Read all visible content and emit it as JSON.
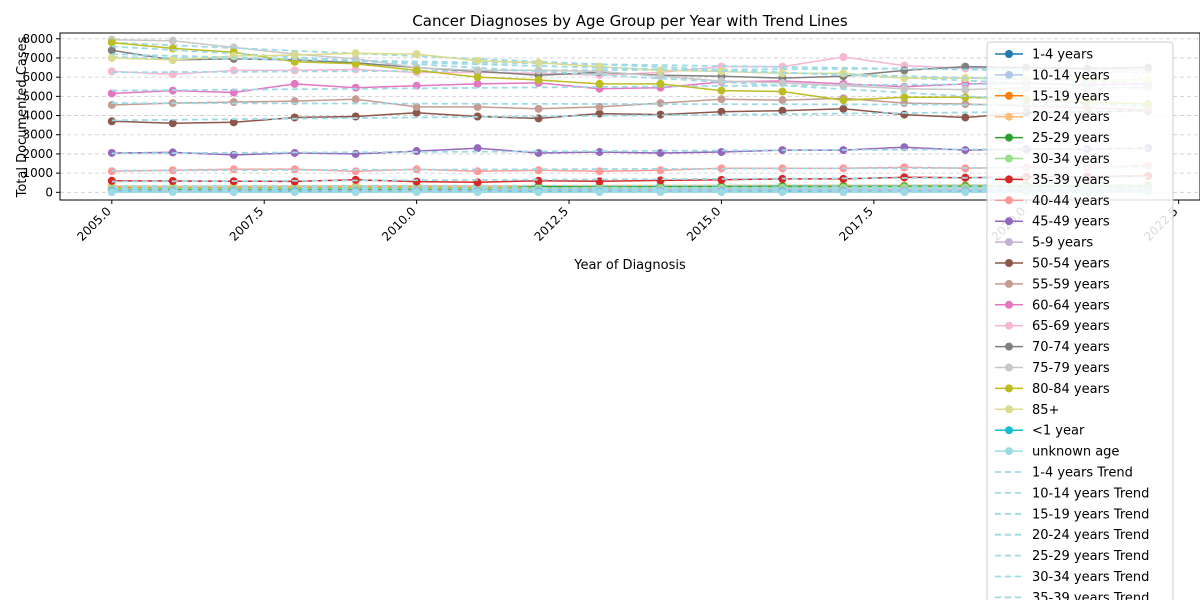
{
  "chart_data": {
    "type": "line",
    "title": "Cancer Diagnoses by Age Group per Year with Trend Lines",
    "xlabel": "Year of Diagnosis",
    "ylabel": "Total Documented Cases",
    "xlim": [
      2004.15,
      2022.85
    ],
    "ylim": [
      -400,
      8300
    ],
    "x_ticks": [
      {
        "value": 2005.0,
        "label": "2005.0"
      },
      {
        "value": 2007.5,
        "label": "2007.5"
      },
      {
        "value": 2010.0,
        "label": "2010.0"
      },
      {
        "value": 2012.5,
        "label": "2012.5"
      },
      {
        "value": 2015.0,
        "label": "2015.0"
      },
      {
        "value": 2017.5,
        "label": "2017.5"
      },
      {
        "value": 2020.0,
        "label": "2020.0"
      },
      {
        "value": 2022.5,
        "label": "2022.5"
      }
    ],
    "y_ticks": [
      {
        "value": 0,
        "label": "0"
      },
      {
        "value": 1000,
        "label": "1000"
      },
      {
        "value": 2000,
        "label": "2000"
      },
      {
        "value": 3000,
        "label": "3000"
      },
      {
        "value": 4000,
        "label": "4000"
      },
      {
        "value": 5000,
        "label": "5000"
      },
      {
        "value": 6000,
        "label": "6000"
      },
      {
        "value": 7000,
        "label": "7000"
      },
      {
        "value": 8000,
        "label": "8000"
      }
    ],
    "grid": "y-dashed",
    "legend_position": "right",
    "x": [
      2005,
      2006,
      2007,
      2008,
      2009,
      2010,
      2011,
      2012,
      2013,
      2014,
      2015,
      2016,
      2017,
      2018,
      2019,
      2020,
      2021,
      2022
    ],
    "series": [
      {
        "name": "1-4 years",
        "color": "#1f77b4",
        "values": [
          130,
          125,
          135,
          140,
          120,
          125,
          130,
          135,
          125,
          130,
          140,
          135,
          130,
          125,
          130,
          135,
          130,
          125
        ],
        "trend": [
          130,
          130
        ]
      },
      {
        "name": "10-14 years",
        "color": "#aec7e8",
        "values": [
          170,
          160,
          165,
          175,
          170,
          160,
          165,
          170,
          175,
          165,
          170,
          175,
          170,
          165,
          170,
          175,
          170,
          165
        ],
        "trend": [
          168,
          170
        ]
      },
      {
        "name": "15-19 years",
        "color": "#ff7f0e",
        "values": [
          260,
          250,
          255,
          265,
          270,
          260,
          255,
          265,
          270,
          275,
          280,
          285,
          280,
          290,
          300,
          295,
          300,
          305
        ],
        "trend": [
          255,
          295
        ]
      },
      {
        "name": "20-24 years",
        "color": "#ffbb78",
        "values": [
          330,
          320,
          325,
          330,
          335,
          340,
          330,
          345,
          350,
          355,
          360,
          365,
          370,
          365,
          375,
          380,
          370,
          380
        ],
        "trend": [
          325,
          375
        ]
      },
      {
        "name": "25-29 years",
        "color": "#2ca02c",
        "values": [
          120,
          130,
          135,
          140,
          145,
          150,
          160,
          300,
          270,
          290,
          300,
          310,
          305,
          310,
          320,
          330,
          325,
          330
        ],
        "trend": [
          120,
          340
        ]
      },
      {
        "name": "30-34 years",
        "color": "#98df8a",
        "values": [
          200,
          210,
          205,
          215,
          210,
          220,
          215,
          225,
          230,
          235,
          240,
          245,
          250,
          255,
          260,
          265,
          270,
          275
        ],
        "trend": [
          200,
          270
        ]
      },
      {
        "name": "35-39 years",
        "color": "#d62728",
        "values": [
          600,
          590,
          580,
          570,
          650,
          560,
          520,
          600,
          580,
          620,
          650,
          700,
          700,
          780,
          760,
          800,
          820,
          850
        ],
        "trend": [
          560,
          800
        ]
      },
      {
        "name": "40-44 years",
        "color": "#ff9896",
        "values": [
          1100,
          1150,
          1200,
          1200,
          1100,
          1200,
          1100,
          1150,
          1100,
          1150,
          1250,
          1250,
          1250,
          1300,
          1250,
          1300,
          1300,
          1400
        ],
        "trend": [
          1130,
          1300
        ]
      },
      {
        "name": "45-49 years",
        "color": "#9467bd",
        "values": [
          2050,
          2080,
          1950,
          2050,
          2000,
          2150,
          2300,
          2050,
          2100,
          2050,
          2100,
          2200,
          2200,
          2350,
          2200,
          2250,
          2250,
          2300
        ],
        "trend": [
          2030,
          2280
        ]
      },
      {
        "name": "5-9 years",
        "color": "#c5b0d5",
        "values": [
          100,
          95,
          105,
          100,
          95,
          100,
          105,
          100,
          95,
          100,
          105,
          100,
          95,
          100,
          105,
          100,
          95,
          100
        ],
        "trend": [
          100,
          100
        ]
      },
      {
        "name": "50-54 years",
        "color": "#8c564b",
        "values": [
          3700,
          3600,
          3650,
          3900,
          3950,
          4150,
          3950,
          3850,
          4100,
          4050,
          4200,
          4250,
          4350,
          4050,
          3900,
          4150,
          4200,
          4250
        ],
        "trend": [
          3750,
          4250
        ]
      },
      {
        "name": "55-59 years",
        "color": "#c49c94",
        "values": [
          4550,
          4650,
          4700,
          4750,
          4850,
          4450,
          4450,
          4350,
          4450,
          4650,
          4850,
          4800,
          4900,
          4650,
          4600,
          4500,
          4400,
          4300
        ],
        "trend": [
          4650,
          4550
        ]
      },
      {
        "name": "60-64 years",
        "color": "#e377c2",
        "values": [
          5150,
          5300,
          5200,
          5650,
          5450,
          5550,
          5650,
          5700,
          5400,
          5450,
          5750,
          5800,
          5650,
          5500,
          5650,
          5700,
          5600,
          5650
        ],
        "trend": [
          5300,
          5700
        ]
      },
      {
        "name": "65-69 years",
        "color": "#f7b6d2",
        "values": [
          6300,
          6150,
          6350,
          6350,
          6400,
          6250,
          6250,
          6200,
          6100,
          6250,
          6550,
          6550,
          7050,
          6600,
          6450,
          6500,
          6400,
          6350
        ],
        "trend": [
          6250,
          6500
        ]
      },
      {
        "name": "70-74 years",
        "color": "#7f7f7f",
        "values": [
          7400,
          6900,
          6950,
          6900,
          6750,
          6500,
          6300,
          6100,
          6250,
          6100,
          6050,
          5950,
          6050,
          6350,
          6550,
          6500,
          6450,
          6500
        ],
        "trend": [
          7050,
          6250
        ]
      },
      {
        "name": "75-79 years",
        "color": "#c7c7c7",
        "values": [
          7950,
          7900,
          7550,
          7200,
          6950,
          6500,
          6350,
          6350,
          6300,
          6050,
          5800,
          5700,
          5550,
          5400,
          5350,
          5450,
          5400,
          5500
        ],
        "trend": [
          7800,
          5400
        ]
      },
      {
        "name": "80-84 years",
        "color": "#bcbd22",
        "values": [
          7800,
          7500,
          7300,
          6800,
          6700,
          6350,
          6000,
          5850,
          5650,
          5650,
          5300,
          5250,
          4800,
          4950,
          4950,
          4850,
          4700,
          4600
        ],
        "trend": [
          7600,
          4450
        ]
      },
      {
        "name": "85+",
        "color": "#dbdb8d",
        "values": [
          7000,
          6900,
          7100,
          7150,
          7250,
          7200,
          6850,
          6750,
          6550,
          6350,
          6300,
          6200,
          6200,
          5950,
          5950,
          5900,
          5850,
          5850
        ],
        "trend": [
          7200,
          5700
        ]
      },
      {
        "name": "<1 year",
        "color": "#17becf",
        "values": [
          40,
          35,
          30,
          40,
          35,
          30,
          35,
          40,
          35,
          30,
          35,
          40,
          35,
          30,
          35,
          40,
          35,
          30
        ],
        "trend": [
          35,
          35
        ]
      },
      {
        "name": "unknown age",
        "color": "#9edae5",
        "values": [
          10,
          15,
          10,
          5,
          10,
          15,
          10,
          5,
          10,
          15,
          10,
          5,
          10,
          15,
          10,
          5,
          10,
          15
        ],
        "trend": [
          10,
          10
        ]
      }
    ],
    "legend_entries": [
      {
        "label": "1-4 years",
        "color": "#1f77b4",
        "style": "line-marker"
      },
      {
        "label": "10-14 years",
        "color": "#aec7e8",
        "style": "line-marker"
      },
      {
        "label": "15-19 years",
        "color": "#ff7f0e",
        "style": "line-marker"
      },
      {
        "label": "20-24 years",
        "color": "#ffbb78",
        "style": "line-marker"
      },
      {
        "label": "25-29 years",
        "color": "#2ca02c",
        "style": "line-marker"
      },
      {
        "label": "30-34 years",
        "color": "#98df8a",
        "style": "line-marker"
      },
      {
        "label": "35-39 years",
        "color": "#d62728",
        "style": "line-marker"
      },
      {
        "label": "40-44 years",
        "color": "#ff9896",
        "style": "line-marker"
      },
      {
        "label": "45-49 years",
        "color": "#9467bd",
        "style": "line-marker"
      },
      {
        "label": "5-9 years",
        "color": "#c5b0d5",
        "style": "line-marker"
      },
      {
        "label": "50-54 years",
        "color": "#8c564b",
        "style": "line-marker"
      },
      {
        "label": "55-59 years",
        "color": "#c49c94",
        "style": "line-marker"
      },
      {
        "label": "60-64 years",
        "color": "#e377c2",
        "style": "line-marker"
      },
      {
        "label": "65-69 years",
        "color": "#f7b6d2",
        "style": "line-marker"
      },
      {
        "label": "70-74 years",
        "color": "#7f7f7f",
        "style": "line-marker"
      },
      {
        "label": "75-79 years",
        "color": "#c7c7c7",
        "style": "line-marker"
      },
      {
        "label": "80-84 years",
        "color": "#bcbd22",
        "style": "line-marker"
      },
      {
        "label": "85+",
        "color": "#dbdb8d",
        "style": "line-marker"
      },
      {
        "label": "<1 year",
        "color": "#17becf",
        "style": "line-marker"
      },
      {
        "label": "unknown age",
        "color": "#9edae5",
        "style": "line-marker"
      },
      {
        "label": "1-4 years Trend",
        "color": "#9edae5",
        "style": "dashed"
      },
      {
        "label": "10-14 years Trend",
        "color": "#9edae5",
        "style": "dashed"
      },
      {
        "label": "15-19 years Trend",
        "color": "#9edae5",
        "style": "dashed"
      },
      {
        "label": "20-24 years Trend",
        "color": "#9edae5",
        "style": "dashed"
      },
      {
        "label": "25-29 years Trend",
        "color": "#9edae5",
        "style": "dashed"
      },
      {
        "label": "30-34 years Trend",
        "color": "#9edae5",
        "style": "dashed"
      },
      {
        "label": "35-39 years Trend",
        "color": "#9edae5",
        "style": "dashed"
      }
    ]
  }
}
